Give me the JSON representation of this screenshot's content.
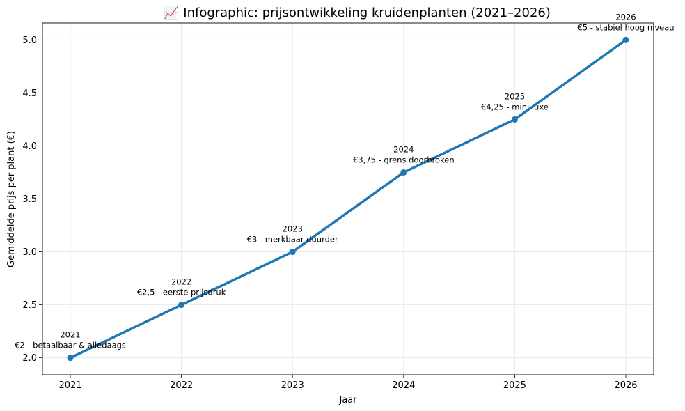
{
  "chart_data": {
    "type": "line",
    "title": "📈 Infographic: prijsontwikkeling kruidenplanten (2021–2026)",
    "xlabel": "Jaar",
    "ylabel": "Gemiddelde prijs per plant (€)",
    "x": [
      "2021",
      "2022",
      "2023",
      "2024",
      "2025",
      "2026"
    ],
    "series": [
      {
        "values": [
          2.0,
          2.5,
          3.0,
          3.75,
          4.25,
          5.0
        ],
        "color": "#1f77b4"
      }
    ],
    "annotations": [
      {
        "year": "2021",
        "text": "€2 - betaalbaar & alledaags"
      },
      {
        "year": "2022",
        "text": "€2,5 - eerste prijsdruk"
      },
      {
        "year": "2023",
        "text": "€3 - merkbaar duurder"
      },
      {
        "year": "2024",
        "text": "€3,75 - grens doorbroken"
      },
      {
        "year": "2025",
        "text": "€4,25 - mini luxe"
      },
      {
        "year": "2026",
        "text": "€5 - stabiel hoog niveau"
      }
    ],
    "yticks": [
      "2.0",
      "2.5",
      "3.0",
      "3.5",
      "4.0",
      "4.5",
      "5.0"
    ],
    "ylim": [
      1.84,
      5.16
    ],
    "grid": true,
    "legend": "none"
  }
}
